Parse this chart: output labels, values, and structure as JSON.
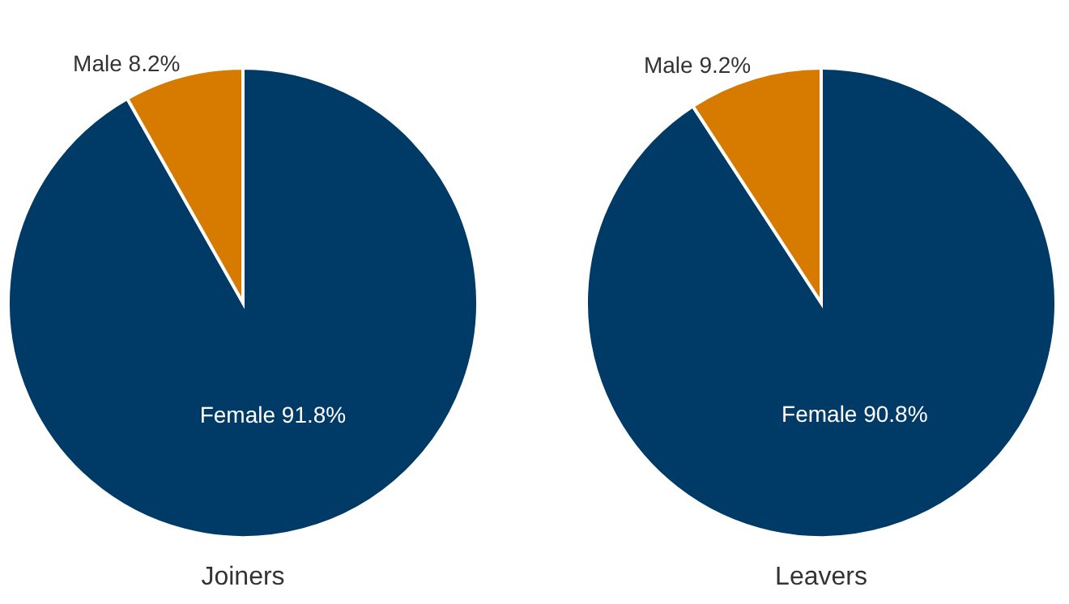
{
  "chart_data": [
    {
      "type": "pie",
      "title": "Joiners",
      "categories": [
        "Female",
        "Male"
      ],
      "values": [
        91.8,
        8.2
      ],
      "colors": [
        "#003a66",
        "#d67b00"
      ],
      "value_labels": [
        "91.8%",
        "8.2%"
      ]
    },
    {
      "type": "pie",
      "title": "Leavers",
      "categories": [
        "Female",
        "Male"
      ],
      "values": [
        90.8,
        9.2
      ],
      "colors": [
        "#003a66",
        "#d67b00"
      ],
      "value_labels": [
        "90.8%",
        "9.2%"
      ]
    }
  ]
}
